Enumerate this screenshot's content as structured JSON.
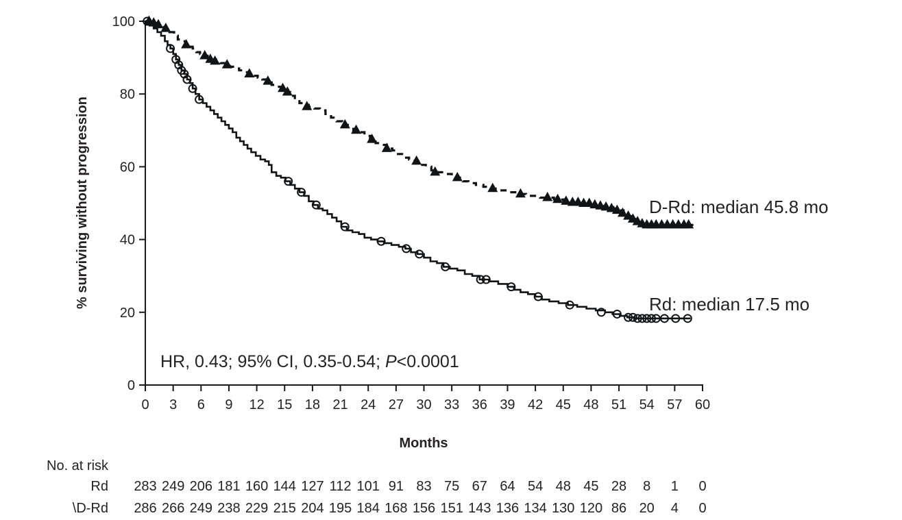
{
  "chart_data": {
    "type": "line",
    "subtype": "kaplan-meier-step",
    "xlabel": "Months",
    "ylabel": "% surviving without progression",
    "xlim": [
      0,
      60
    ],
    "ylim": [
      0,
      100
    ],
    "x_ticks": [
      0,
      3,
      6,
      9,
      12,
      15,
      18,
      21,
      24,
      27,
      30,
      33,
      36,
      39,
      42,
      45,
      48,
      51,
      54,
      57,
      60
    ],
    "y_ticks": [
      0,
      20,
      40,
      60,
      80,
      100
    ],
    "grid": false,
    "legend_position": "right-of-curves",
    "annotation": {
      "prefix": "HR, 0.43; 95% CI, 0.35-0.54; ",
      "italic": "P",
      "suffix": "<0.0001"
    },
    "colors": {
      "ink": "#1a1718",
      "curve": "#111416"
    },
    "series": [
      {
        "name": "D-Rd",
        "label": "D-Rd: median 45.8 mo",
        "line_style": "dashed",
        "marker": "filled-triangle",
        "steps": [
          [
            0,
            100
          ],
          [
            0.7,
            99.5
          ],
          [
            1.4,
            99
          ],
          [
            2,
            98
          ],
          [
            2.6,
            97
          ],
          [
            3.1,
            96
          ],
          [
            3.5,
            95
          ],
          [
            3.9,
            94.5
          ],
          [
            4.3,
            93.5
          ],
          [
            4.7,
            93
          ],
          [
            5.1,
            92.5
          ],
          [
            5.5,
            91.5
          ],
          [
            5.9,
            91
          ],
          [
            6.3,
            90.5
          ],
          [
            6.7,
            90
          ],
          [
            7.1,
            89.5
          ],
          [
            7.6,
            89
          ],
          [
            8.1,
            88.5
          ],
          [
            8.6,
            88
          ],
          [
            9.1,
            87.5
          ],
          [
            9.6,
            87
          ],
          [
            10.1,
            86.5
          ],
          [
            10.6,
            86
          ],
          [
            11.1,
            85.5
          ],
          [
            11.6,
            85
          ],
          [
            12.1,
            84.5
          ],
          [
            12.6,
            84
          ],
          [
            13.1,
            83.5
          ],
          [
            13.6,
            82.5
          ],
          [
            14.1,
            82
          ],
          [
            14.6,
            81.5
          ],
          [
            15.1,
            80.5
          ],
          [
            15.6,
            79.5
          ],
          [
            16.1,
            78.5
          ],
          [
            16.6,
            77.5
          ],
          [
            17.1,
            77
          ],
          [
            17.6,
            76.5
          ],
          [
            18.2,
            76
          ],
          [
            18.8,
            75.5
          ],
          [
            19.4,
            74.5
          ],
          [
            20,
            73.5
          ],
          [
            20.6,
            72.5
          ],
          [
            21.2,
            71.5
          ],
          [
            21.8,
            71
          ],
          [
            22.4,
            70
          ],
          [
            23,
            69.5
          ],
          [
            23.6,
            68.5
          ],
          [
            24.2,
            67.5
          ],
          [
            24.8,
            66.5
          ],
          [
            25.4,
            66
          ],
          [
            26,
            65
          ],
          [
            26.6,
            64.5
          ],
          [
            27.2,
            63.5
          ],
          [
            27.8,
            62.5
          ],
          [
            28.4,
            62
          ],
          [
            29,
            61.5
          ],
          [
            29.6,
            60.5
          ],
          [
            30.2,
            60
          ],
          [
            30.8,
            59
          ],
          [
            31.4,
            58.5
          ],
          [
            32.2,
            58
          ],
          [
            33,
            57.5
          ],
          [
            33.6,
            57
          ],
          [
            34.2,
            56
          ],
          [
            34.8,
            55.5
          ],
          [
            35.6,
            55
          ],
          [
            36.4,
            54.5
          ],
          [
            37.2,
            54
          ],
          [
            38,
            53.5
          ],
          [
            39,
            53
          ],
          [
            40,
            52.5
          ],
          [
            41,
            52
          ],
          [
            42.5,
            51.5
          ],
          [
            44,
            51
          ],
          [
            45,
            50.5
          ],
          [
            46,
            50.2
          ],
          [
            47,
            49.9
          ],
          [
            48,
            49.5
          ],
          [
            48.8,
            49.2
          ],
          [
            49.6,
            48.9
          ],
          [
            50.4,
            48.5
          ],
          [
            51,
            48
          ],
          [
            51.5,
            47.2
          ],
          [
            52,
            46.4
          ],
          [
            52.4,
            45.6
          ],
          [
            52.8,
            44.9
          ],
          [
            53.2,
            44.3
          ],
          [
            53.6,
            44
          ],
          [
            59.2,
            44
          ]
        ],
        "censor_marks": [
          [
            0.4,
            100
          ],
          [
            0.9,
            99.5
          ],
          [
            1.4,
            99
          ],
          [
            2.2,
            98
          ],
          [
            4.4,
            93.5
          ],
          [
            6.4,
            90.5
          ],
          [
            7,
            89.5
          ],
          [
            7.5,
            89
          ],
          [
            8.8,
            88
          ],
          [
            11.2,
            85.5
          ],
          [
            13.2,
            83.5
          ],
          [
            14.8,
            81.5
          ],
          [
            15.3,
            80.5
          ],
          [
            17.4,
            76.5
          ],
          [
            21.5,
            71.5
          ],
          [
            22.7,
            70
          ],
          [
            24.4,
            67.5
          ],
          [
            26,
            65
          ],
          [
            29.2,
            61.5
          ],
          [
            31.2,
            58.5
          ],
          [
            33.6,
            57
          ],
          [
            37.4,
            54
          ],
          [
            40.4,
            52.5
          ],
          [
            43.3,
            51.5
          ],
          [
            44.4,
            51
          ],
          [
            45.3,
            50.5
          ],
          [
            46,
            50.2
          ],
          [
            46.6,
            50.2
          ],
          [
            47.2,
            49.9
          ],
          [
            47.8,
            49.9
          ],
          [
            48.4,
            49.5
          ],
          [
            49,
            49.2
          ],
          [
            49.6,
            48.9
          ],
          [
            50.2,
            48.5
          ],
          [
            50.8,
            48
          ],
          [
            51.4,
            47.2
          ],
          [
            52,
            46.4
          ],
          [
            52.5,
            45.6
          ],
          [
            53,
            44.9
          ],
          [
            53.5,
            44.3
          ],
          [
            54,
            44
          ],
          [
            54.5,
            44
          ],
          [
            55,
            44
          ],
          [
            55.6,
            44
          ],
          [
            56.2,
            44
          ],
          [
            56.8,
            44
          ],
          [
            57.4,
            44
          ],
          [
            58,
            44
          ],
          [
            58.5,
            44
          ]
        ]
      },
      {
        "name": "Rd",
        "label": "Rd: median 17.5 mo",
        "line_style": "solid",
        "marker": "open-circle",
        "steps": [
          [
            0,
            100
          ],
          [
            0.4,
            99
          ],
          [
            0.9,
            98
          ],
          [
            1.3,
            97
          ],
          [
            1.7,
            96
          ],
          [
            2.1,
            94.5
          ],
          [
            2.4,
            93.5
          ],
          [
            2.7,
            92.5
          ],
          [
            3,
            91
          ],
          [
            3.3,
            89.5
          ],
          [
            3.6,
            88
          ],
          [
            3.9,
            86.5
          ],
          [
            4.2,
            85.5
          ],
          [
            4.5,
            84
          ],
          [
            4.8,
            83
          ],
          [
            5.1,
            81.5
          ],
          [
            5.4,
            80
          ],
          [
            5.8,
            78.5
          ],
          [
            6.2,
            77.5
          ],
          [
            6.6,
            76.5
          ],
          [
            7,
            75.5
          ],
          [
            7.4,
            74.5
          ],
          [
            7.8,
            73.5
          ],
          [
            8.2,
            72.5
          ],
          [
            8.6,
            71.5
          ],
          [
            9,
            70.5
          ],
          [
            9.4,
            69.5
          ],
          [
            9.8,
            68
          ],
          [
            10.2,
            67
          ],
          [
            10.6,
            66
          ],
          [
            11,
            65
          ],
          [
            11.4,
            64
          ],
          [
            11.9,
            63
          ],
          [
            12.4,
            62
          ],
          [
            12.9,
            61.5
          ],
          [
            13.3,
            60.5
          ],
          [
            13.6,
            58.5
          ],
          [
            14.1,
            57.5
          ],
          [
            14.6,
            57
          ],
          [
            15.1,
            56
          ],
          [
            15.6,
            55
          ],
          [
            16.1,
            54
          ],
          [
            16.6,
            53
          ],
          [
            17.1,
            52
          ],
          [
            17.6,
            50.5
          ],
          [
            18.1,
            49.5
          ],
          [
            18.6,
            48.5
          ],
          [
            19.1,
            48
          ],
          [
            19.6,
            47
          ],
          [
            20.1,
            46
          ],
          [
            20.6,
            45
          ],
          [
            21.1,
            43.5
          ],
          [
            21.7,
            42.5
          ],
          [
            22.3,
            42
          ],
          [
            23,
            41.5
          ],
          [
            23.6,
            40.5
          ],
          [
            24.3,
            40
          ],
          [
            25,
            39.5
          ],
          [
            25.7,
            39
          ],
          [
            26.5,
            38.5
          ],
          [
            27.3,
            38
          ],
          [
            28,
            37.5
          ],
          [
            28.6,
            36.5
          ],
          [
            29.3,
            36
          ],
          [
            30,
            35
          ],
          [
            30.7,
            34
          ],
          [
            31.4,
            33.5
          ],
          [
            32.1,
            32.5
          ],
          [
            32.8,
            32
          ],
          [
            33.6,
            31.5
          ],
          [
            34.4,
            30.5
          ],
          [
            35.2,
            30
          ],
          [
            36,
            29
          ],
          [
            37,
            28.5
          ],
          [
            38,
            27.8
          ],
          [
            39,
            27
          ],
          [
            39.7,
            26.2
          ],
          [
            40.4,
            25.5
          ],
          [
            41.2,
            25
          ],
          [
            42,
            24.3
          ],
          [
            42.7,
            23.5
          ],
          [
            43.5,
            23
          ],
          [
            44.5,
            22.5
          ],
          [
            45.5,
            22
          ],
          [
            46.5,
            21.5
          ],
          [
            47.5,
            21
          ],
          [
            48.5,
            20.5
          ],
          [
            49.5,
            20
          ],
          [
            50.3,
            19.5
          ],
          [
            51.1,
            19
          ],
          [
            51.9,
            18.6
          ],
          [
            52.7,
            18.3
          ],
          [
            58.7,
            18.3
          ]
        ],
        "censor_marks": [
          [
            0.2,
            100
          ],
          [
            2.7,
            92.5
          ],
          [
            3.3,
            89.5
          ],
          [
            3.6,
            88
          ],
          [
            3.9,
            86.5
          ],
          [
            4.2,
            85.5
          ],
          [
            4.5,
            84
          ],
          [
            5.1,
            81.5
          ],
          [
            5.8,
            78.5
          ],
          [
            15.4,
            56
          ],
          [
            16.8,
            53
          ],
          [
            18.4,
            49.5
          ],
          [
            21.5,
            43.5
          ],
          [
            25.4,
            39.5
          ],
          [
            28.1,
            37.5
          ],
          [
            29.5,
            36
          ],
          [
            32.3,
            32.5
          ],
          [
            36.1,
            29
          ],
          [
            36.7,
            29
          ],
          [
            39.4,
            27
          ],
          [
            42.3,
            24.3
          ],
          [
            45.7,
            22
          ],
          [
            49.1,
            20
          ],
          [
            50.8,
            19.5
          ],
          [
            52,
            18.6
          ],
          [
            52.5,
            18.6
          ],
          [
            53,
            18.3
          ],
          [
            53.5,
            18.3
          ],
          [
            54,
            18.3
          ],
          [
            54.5,
            18.3
          ],
          [
            55,
            18.3
          ],
          [
            55.9,
            18.3
          ],
          [
            57.1,
            18.3
          ],
          [
            58.4,
            18.3
          ]
        ]
      }
    ],
    "risk_table": {
      "header": "No. at risk",
      "months": [
        0,
        3,
        6,
        9,
        12,
        15,
        18,
        21,
        24,
        27,
        30,
        33,
        36,
        39,
        42,
        45,
        48,
        51,
        54,
        57,
        60
      ],
      "rows": [
        {
          "label": "Rd",
          "values": [
            283,
            249,
            206,
            181,
            160,
            144,
            127,
            112,
            101,
            91,
            83,
            75,
            67,
            64,
            54,
            48,
            45,
            28,
            8,
            1,
            0
          ]
        },
        {
          "label": "\\D-Rd",
          "values": [
            286,
            266,
            249,
            238,
            229,
            215,
            204,
            195,
            184,
            168,
            156,
            151,
            143,
            136,
            134,
            130,
            120,
            86,
            20,
            4,
            0
          ]
        }
      ]
    }
  }
}
